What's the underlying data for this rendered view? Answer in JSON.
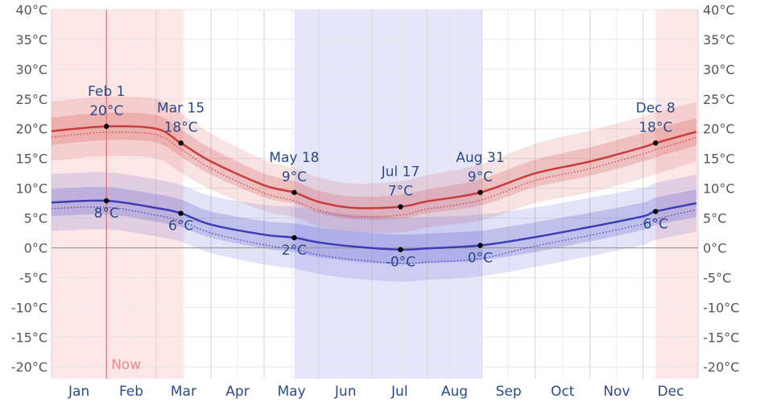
{
  "chart_data": {
    "type": "line",
    "x_unit": "day of year",
    "months": [
      "Jan",
      "Feb",
      "Mar",
      "Apr",
      "May",
      "Jun",
      "Jul",
      "Aug",
      "Sep",
      "Oct",
      "Nov",
      "Dec"
    ],
    "ylim": [
      -22,
      40
    ],
    "yticks": [
      -20,
      -15,
      -10,
      -5,
      0,
      5,
      10,
      15,
      20,
      25,
      30,
      35,
      40
    ],
    "ytick_labels": [
      "-20°C",
      "-15°C",
      "-10°C",
      "-5°C",
      "0°C",
      "5°C",
      "10°C",
      "15°C",
      "20°C",
      "25°C",
      "30°C",
      "35°C",
      "40°C"
    ],
    "grid": true,
    "now_label": "Now",
    "now_day": 32,
    "colors": {
      "high_line": "#c83c3c",
      "low_line": "#3c3cb4",
      "warm_season": "#fde7e7",
      "cold_season": "#e6e6fb",
      "now_line": "#e07070"
    },
    "seasons": [
      {
        "kind": "warm",
        "start_day": 1,
        "end_day": 74
      },
      {
        "kind": "cold",
        "start_day": 138,
        "end_day": 243
      },
      {
        "kind": "warm",
        "start_day": 342,
        "end_day": 365
      }
    ],
    "series": [
      {
        "kind": "high",
        "x": [
          1,
          32,
          60,
          74,
          91,
          121,
          138,
          152,
          172,
          198,
          213,
          243,
          274,
          305,
          335,
          342,
          365
        ],
        "values": [
          19.6,
          20.4,
          20.0,
          17.6,
          14.5,
          10.5,
          9.3,
          7.7,
          6.7,
          6.9,
          7.8,
          9.3,
          12.5,
          14.5,
          16.9,
          17.6,
          19.5
        ],
        "band_inner": [
          2.3,
          2.3,
          2.3,
          2.3,
          2.2,
          2.0,
          1.9,
          1.9,
          1.9,
          2.0,
          2.0,
          2.2,
          2.3,
          2.4,
          2.4,
          2.4,
          2.3
        ],
        "band_outer": [
          5.0,
          5.0,
          5.0,
          5.0,
          4.7,
          4.3,
          4.1,
          4.1,
          4.1,
          4.3,
          4.4,
          4.7,
          5.0,
          5.2,
          5.2,
          5.2,
          5.0
        ],
        "feels_like": [
          18.6,
          19.4,
          19.0,
          16.6,
          13.3,
          9.2,
          7.9,
          6.3,
          5.2,
          5.5,
          6.5,
          8.0,
          11.3,
          13.3,
          15.8,
          16.5,
          18.5
        ]
      },
      {
        "kind": "low",
        "x": [
          1,
          32,
          60,
          74,
          91,
          121,
          138,
          152,
          172,
          198,
          213,
          243,
          274,
          305,
          335,
          342,
          365
        ],
        "values": [
          7.6,
          7.9,
          6.7,
          5.8,
          3.9,
          2.2,
          1.7,
          0.9,
          0.2,
          -0.3,
          -0.1,
          0.4,
          1.8,
          3.5,
          5.3,
          6.1,
          7.5
        ],
        "band_inner": [
          2.3,
          2.3,
          2.3,
          2.3,
          2.2,
          2.3,
          2.4,
          2.5,
          2.5,
          2.5,
          2.5,
          2.5,
          2.5,
          2.4,
          2.3,
          2.3,
          2.3
        ],
        "band_outer": [
          4.8,
          4.8,
          4.8,
          4.8,
          4.8,
          5.0,
          5.2,
          5.3,
          5.4,
          5.4,
          5.3,
          5.2,
          5.0,
          4.9,
          4.8,
          4.8,
          4.8
        ],
        "feels_like": [
          6.6,
          6.8,
          5.5,
          4.5,
          2.5,
          0.5,
          -0.2,
          -1.2,
          -2.0,
          -2.6,
          -2.4,
          -1.8,
          0.3,
          2.1,
          4.0,
          4.8,
          6.4
        ]
      }
    ],
    "annotations": [
      {
        "day": 32,
        "value": 20.4,
        "date": "Feb 1",
        "label": "20°C",
        "pos": "above"
      },
      {
        "day": 74,
        "value": 17.6,
        "date": "Mar 15",
        "label": "18°C",
        "pos": "above"
      },
      {
        "day": 138,
        "value": 9.3,
        "date": "May 18",
        "label": "9°C",
        "pos": "above"
      },
      {
        "day": 198,
        "value": 6.9,
        "date": "Jul 17",
        "label": "7°C",
        "pos": "above"
      },
      {
        "day": 243,
        "value": 9.3,
        "date": "Aug 31",
        "label": "9°C",
        "pos": "above"
      },
      {
        "day": 342,
        "value": 17.6,
        "date": "Dec 8",
        "label": "18°C",
        "pos": "above"
      },
      {
        "day": 32,
        "value": 7.9,
        "date": "",
        "label": "8°C",
        "pos": "below"
      },
      {
        "day": 74,
        "value": 5.8,
        "date": "",
        "label": "6°C",
        "pos": "below"
      },
      {
        "day": 138,
        "value": 1.7,
        "date": "",
        "label": "2°C",
        "pos": "below"
      },
      {
        "day": 198,
        "value": -0.3,
        "date": "",
        "label": "-0°C",
        "pos": "below"
      },
      {
        "day": 243,
        "value": 0.4,
        "date": "",
        "label": "0°C",
        "pos": "below"
      },
      {
        "day": 342,
        "value": 6.1,
        "date": "",
        "label": "6°C",
        "pos": "below"
      }
    ]
  }
}
